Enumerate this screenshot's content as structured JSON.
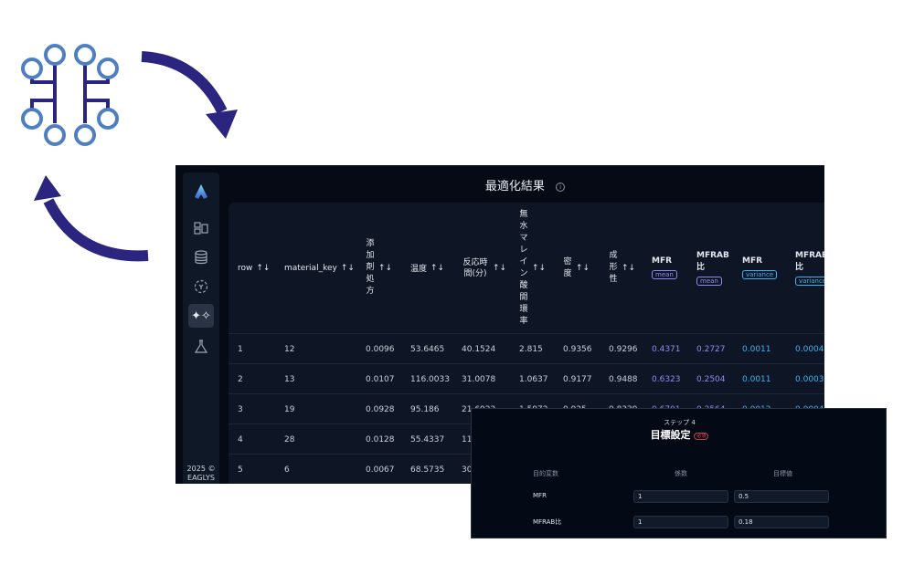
{
  "app": {
    "title": "最適化結果",
    "copyright": "2025 © EAGLYS"
  },
  "sidebar": {
    "items": [
      {
        "icon": "layout-icon"
      },
      {
        "icon": "database-icon"
      },
      {
        "icon": "target-icon"
      },
      {
        "icon": "sparkles-icon",
        "active": true
      },
      {
        "icon": "flask-icon"
      }
    ]
  },
  "table": {
    "headers": [
      {
        "label": "row",
        "sortable": true
      },
      {
        "label": "material_key",
        "sortable": true
      },
      {
        "label": "添加剤処方",
        "sortable": true,
        "vertical": true
      },
      {
        "label": "温度",
        "sortable": true
      },
      {
        "label": "反応時間(分)",
        "sortable": true
      },
      {
        "label": "無水マレイン酸開環率",
        "sortable": true,
        "vertical": true
      },
      {
        "label": "密度",
        "sortable": true,
        "vertical": true
      },
      {
        "label": "成形性",
        "sortable": true,
        "vertical": true
      },
      {
        "label": "MFR",
        "badge": "mean"
      },
      {
        "label": "MFRAB比",
        "badge": "mean"
      },
      {
        "label": "MFR",
        "badge": "variance"
      },
      {
        "label": "MFRAB比",
        "badge": "variance"
      }
    ],
    "rows": [
      [
        "1",
        "12",
        "0.0096",
        "53.6465",
        "40.1524",
        "2.815",
        "0.9356",
        "0.9296",
        "0.4371",
        "0.2727",
        "0.0011",
        "0.0004"
      ],
      [
        "2",
        "13",
        "0.0107",
        "116.0033",
        "31.0078",
        "1.0637",
        "0.9177",
        "0.9488",
        "0.6323",
        "0.2504",
        "0.0011",
        "0.0003"
      ],
      [
        "3",
        "19",
        "0.0928",
        "95.186",
        "21.6922",
        "1.5972",
        "0.925",
        "0.8339",
        "0.6701",
        "0.2564",
        "0.0012",
        "0.0004"
      ],
      [
        "4",
        "28",
        "0.0128",
        "55.4337",
        "11",
        "",
        "",
        "",
        "",
        "",
        "",
        ""
      ],
      [
        "5",
        "6",
        "0.0067",
        "68.5735",
        "30",
        "",
        "",
        "",
        "",
        "",
        "",
        ""
      ]
    ]
  },
  "target_panel": {
    "step": "ステップ 4",
    "title": "目標設定",
    "required_badge": "必須",
    "columns": [
      "目的変数",
      "係数",
      "目標値"
    ],
    "rows": [
      {
        "variable": "MFR",
        "coefficient": "1",
        "target": "0.5"
      },
      {
        "variable": "MFRAB比",
        "coefficient": "1",
        "target": "0.18"
      }
    ]
  },
  "colors": {
    "mean_accent": "#8f8cf0",
    "variance_accent": "#3fb2f0",
    "arrow": "#2c2580",
    "node": "#4f7fc0"
  }
}
